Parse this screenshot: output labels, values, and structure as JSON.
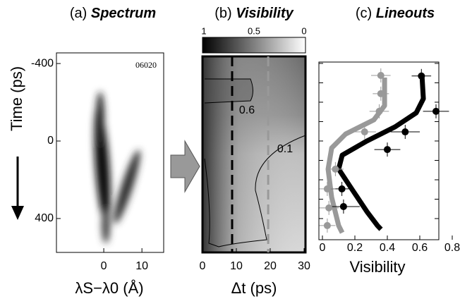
{
  "chart_data": [
    {
      "type": "image",
      "label": "(a)",
      "title": "Spectrum",
      "annotation": "06020",
      "xlabel": "λS−λ0 (Å)",
      "ylabel": "Time (ps)",
      "xlim": [
        -12.4,
        15.7
      ],
      "xticks": [
        0,
        10
      ],
      "ylim": [
        -455,
        575
      ],
      "yticks": [
        -400,
        0,
        400
      ]
    },
    {
      "type": "heatmap",
      "label": "(b)",
      "title": "Visibility",
      "xlabel": "Δt (ps)",
      "xlim": [
        0,
        30
      ],
      "xticks": [
        0,
        10,
        20,
        30
      ],
      "colorbar": {
        "lim": [
          1,
          0
        ],
        "ticks": [
          1,
          0.5,
          0
        ]
      },
      "contour_labels": [
        "0.6",
        "0.1"
      ],
      "vlines": [
        {
          "x": 8.75,
          "color": "#000000"
        },
        {
          "x": 19.4,
          "color": "#999999"
        }
      ]
    },
    {
      "type": "scatter",
      "label": "(c)",
      "title": "Lineouts",
      "xlabel": "Visibility",
      "xlim": [
        0,
        0.8
      ],
      "xticks": [
        0,
        0.2,
        0.4,
        0.6,
        0.8
      ],
      "ylim": [
        -407,
        509
      ],
      "yticks": [
        -400,
        -300,
        -200,
        -100,
        0,
        100,
        200,
        300,
        400
      ],
      "series": [
        {
          "color": "#000000",
          "x": [
            0.61,
            0.7,
            0.51,
            0.4,
            0.12,
            0.13
          ],
          "values": [
            -335,
            -153,
            -47,
            44,
            247,
            338
          ],
          "xerr": [
            0.06,
            0.08,
            0.09,
            0.08,
            0.07,
            0.1
          ]
        },
        {
          "color": "#999999",
          "x": [
            0.36,
            0.36,
            0.35,
            0.26,
            0.08,
            0.03,
            0.04,
            0.03
          ],
          "values": [
            -338,
            -244,
            -153,
            -47,
            145,
            247,
            345,
            436
          ],
          "xerr": [
            0.06,
            0.05,
            0.06,
            0.07,
            0.05,
            0.05,
            0.06,
            0.05
          ]
        }
      ],
      "curves": [
        {
          "color": "#000000",
          "x": [
            0.613,
            0.622,
            0.578,
            0.448,
            0.274,
            0.122,
            0.1,
            0.187,
            0.274,
            0.339,
            0.361
          ],
          "values": [
            -345,
            -218,
            -145,
            -73,
            0,
            73,
            145,
            255,
            364,
            436,
            455
          ]
        },
        {
          "color": "#999999",
          "x": [
            0.383,
            0.383,
            0.317,
            0.143,
            0.057,
            0.035,
            0.057,
            0.1,
            0.122
          ],
          "values": [
            -327,
            -182,
            -109,
            -36,
            36,
            145,
            291,
            436,
            473
          ]
        }
      ]
    }
  ]
}
